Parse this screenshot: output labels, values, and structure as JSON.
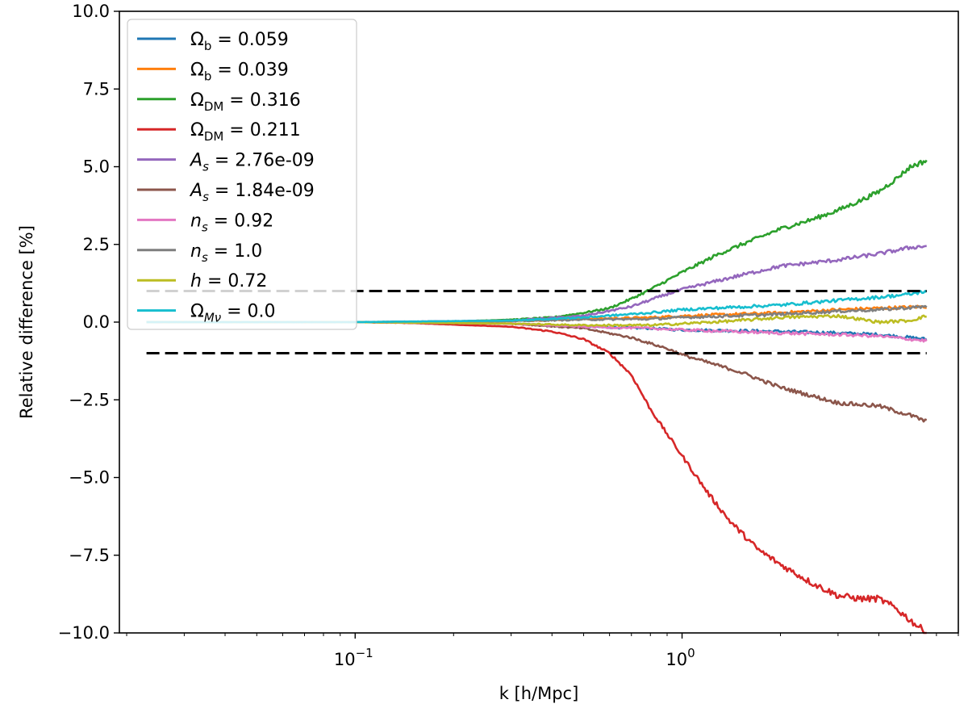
{
  "chart_data": {
    "type": "line",
    "title": "",
    "xlabel": "k [h/Mpc]",
    "ylabel": "Relative difference [%]",
    "xscale": "log",
    "xlim": [
      0.019,
      7.0
    ],
    "ylim": [
      -10.0,
      10.0
    ],
    "grid": false,
    "legend_position": "top-left",
    "y_ticks": [
      -10.0,
      -7.5,
      -5.0,
      -2.5,
      0.0,
      2.5,
      5.0,
      7.5,
      10.0
    ],
    "y_tick_labels": [
      "−10.0",
      "−7.5",
      "−5.0",
      "−2.5",
      "0.0",
      "2.5",
      "5.0",
      "7.5",
      "10.0"
    ],
    "x_major_ticks": [
      0.1,
      1.0
    ],
    "x_tick_labels": [
      {
        "base": "10",
        "exp": "−1"
      },
      {
        "base": "10",
        "exp": "0"
      }
    ],
    "reference_lines": [
      {
        "y": 1.0,
        "style": "dashed",
        "color": "#000000",
        "x_range": [
          0.023,
          5.6
        ]
      },
      {
        "y": -1.0,
        "style": "dashed",
        "color": "#000000",
        "x_range": [
          0.023,
          5.6
        ]
      }
    ],
    "series": [
      {
        "name": "Omega_b = 0.059",
        "legend": {
          "sym": "Ω",
          "sub": "b",
          "val": " = 0.059",
          "italic": false
        },
        "color": "#1f77b4",
        "points": [
          [
            0.023,
            0
          ],
          [
            0.1,
            0
          ],
          [
            0.3,
            -0.05
          ],
          [
            0.5,
            -0.15
          ],
          [
            0.8,
            -0.2
          ],
          [
            1.0,
            -0.25
          ],
          [
            2.0,
            -0.3
          ],
          [
            3.0,
            -0.35
          ],
          [
            4.0,
            -0.4
          ],
          [
            5.6,
            -0.55
          ]
        ]
      },
      {
        "name": "Omega_b = 0.039",
        "legend": {
          "sym": "Ω",
          "sub": "b",
          "val": " = 0.039",
          "italic": false
        },
        "color": "#ff7f0e",
        "points": [
          [
            0.023,
            0
          ],
          [
            0.1,
            0
          ],
          [
            0.3,
            0.03
          ],
          [
            0.5,
            0.1
          ],
          [
            0.8,
            0.15
          ],
          [
            1.0,
            0.2
          ],
          [
            2.0,
            0.3
          ],
          [
            3.0,
            0.4
          ],
          [
            4.0,
            0.45
          ],
          [
            5.6,
            0.5
          ]
        ]
      },
      {
        "name": "Omega_DM = 0.316",
        "legend": {
          "sym": "Ω",
          "sub": "DM",
          "val": " = 0.316",
          "italic": false
        },
        "color": "#2ca02c",
        "points": [
          [
            0.023,
            0
          ],
          [
            0.1,
            0
          ],
          [
            0.2,
            0.02
          ],
          [
            0.3,
            0.08
          ],
          [
            0.4,
            0.15
          ],
          [
            0.5,
            0.3
          ],
          [
            0.6,
            0.45
          ],
          [
            0.7,
            0.75
          ],
          [
            0.8,
            1.05
          ],
          [
            1.0,
            1.6
          ],
          [
            1.3,
            2.2
          ],
          [
            1.7,
            2.7
          ],
          [
            2.0,
            3.0
          ],
          [
            2.5,
            3.3
          ],
          [
            3.0,
            3.6
          ],
          [
            3.5,
            3.9
          ],
          [
            4.0,
            4.2
          ],
          [
            4.5,
            4.6
          ],
          [
            5.0,
            5.0
          ],
          [
            5.6,
            5.2
          ]
        ]
      },
      {
        "name": "Omega_DM = 0.211",
        "legend": {
          "sym": "Ω",
          "sub": "DM",
          "val": " = 0.211",
          "italic": false
        },
        "color": "#d62728",
        "points": [
          [
            0.023,
            0
          ],
          [
            0.1,
            0
          ],
          [
            0.15,
            -0.03
          ],
          [
            0.2,
            -0.08
          ],
          [
            0.3,
            -0.15
          ],
          [
            0.4,
            -0.3
          ],
          [
            0.5,
            -0.55
          ],
          [
            0.6,
            -1.0
          ],
          [
            0.7,
            -1.7
          ],
          [
            0.8,
            -2.8
          ],
          [
            0.9,
            -3.6
          ],
          [
            1.0,
            -4.3
          ],
          [
            1.2,
            -5.5
          ],
          [
            1.4,
            -6.4
          ],
          [
            1.7,
            -7.3
          ],
          [
            2.0,
            -7.8
          ],
          [
            2.5,
            -8.4
          ],
          [
            3.0,
            -8.8
          ],
          [
            3.5,
            -8.9
          ],
          [
            4.0,
            -8.9
          ],
          [
            4.5,
            -9.2
          ],
          [
            5.0,
            -9.6
          ],
          [
            5.6,
            -10.0
          ]
        ]
      },
      {
        "name": "A_s = 2.76e-09",
        "legend": {
          "sym": "A",
          "sub": "s",
          "val": " = 2.76e-09",
          "italic": true
        },
        "color": "#9467bd",
        "points": [
          [
            0.023,
            0
          ],
          [
            0.1,
            0
          ],
          [
            0.3,
            0.05
          ],
          [
            0.5,
            0.2
          ],
          [
            0.7,
            0.5
          ],
          [
            0.9,
            0.9
          ],
          [
            1.0,
            1.05
          ],
          [
            1.5,
            1.5
          ],
          [
            2.0,
            1.8
          ],
          [
            3.0,
            2.0
          ],
          [
            4.0,
            2.2
          ],
          [
            5.0,
            2.4
          ],
          [
            5.6,
            2.45
          ]
        ]
      },
      {
        "name": "A_s = 1.84e-09",
        "legend": {
          "sym": "A",
          "sub": "s",
          "val": " = 1.84e-09",
          "italic": true
        },
        "color": "#8c564b",
        "points": [
          [
            0.023,
            0
          ],
          [
            0.1,
            0
          ],
          [
            0.3,
            -0.05
          ],
          [
            0.5,
            -0.2
          ],
          [
            0.7,
            -0.5
          ],
          [
            0.9,
            -0.85
          ],
          [
            1.0,
            -1.05
          ],
          [
            1.5,
            -1.6
          ],
          [
            2.0,
            -2.1
          ],
          [
            3.0,
            -2.6
          ],
          [
            4.0,
            -2.7
          ],
          [
            5.0,
            -3.0
          ],
          [
            5.6,
            -3.2
          ]
        ]
      },
      {
        "name": "n_s = 0.92",
        "legend": {
          "sym": "n",
          "sub": "s",
          "val": " = 0.92",
          "italic": true
        },
        "color": "#e377c2",
        "points": [
          [
            0.023,
            0
          ],
          [
            0.1,
            0
          ],
          [
            0.3,
            -0.05
          ],
          [
            0.5,
            -0.15
          ],
          [
            0.8,
            -0.2
          ],
          [
            1.0,
            -0.25
          ],
          [
            2.0,
            -0.35
          ],
          [
            3.0,
            -0.4
          ],
          [
            4.0,
            -0.45
          ],
          [
            5.6,
            -0.6
          ]
        ]
      },
      {
        "name": "n_s = 1.0",
        "legend": {
          "sym": "n",
          "sub": "s",
          "val": " = 1.0",
          "italic": true
        },
        "color": "#7f7f7f",
        "points": [
          [
            0.023,
            0
          ],
          [
            0.1,
            0
          ],
          [
            0.3,
            0.03
          ],
          [
            0.5,
            0.08
          ],
          [
            0.8,
            0.1
          ],
          [
            1.0,
            0.15
          ],
          [
            2.0,
            0.25
          ],
          [
            3.0,
            0.35
          ],
          [
            4.0,
            0.4
          ],
          [
            5.6,
            0.5
          ]
        ]
      },
      {
        "name": "h = 0.72",
        "legend": {
          "sym": "h",
          "sub": "",
          "val": " = 0.72",
          "italic": true
        },
        "color": "#bcbd22",
        "points": [
          [
            0.023,
            0
          ],
          [
            0.1,
            0
          ],
          [
            0.3,
            -0.05
          ],
          [
            0.5,
            -0.1
          ],
          [
            0.8,
            -0.1
          ],
          [
            1.0,
            -0.05
          ],
          [
            1.5,
            0.05
          ],
          [
            2.0,
            0.15
          ],
          [
            3.0,
            0.2
          ],
          [
            4.0,
            0.0
          ],
          [
            5.0,
            0.05
          ],
          [
            5.6,
            0.2
          ]
        ]
      },
      {
        "name": "Omega_Mnu = 0.0",
        "legend": {
          "sym": "Ω",
          "sub": "Mν",
          "val": " = 0.0",
          "italic": false,
          "sub_italic": true
        },
        "color": "#17becf",
        "points": [
          [
            0.023,
            0
          ],
          [
            0.1,
            0
          ],
          [
            0.3,
            0.05
          ],
          [
            0.5,
            0.15
          ],
          [
            0.8,
            0.3
          ],
          [
            1.0,
            0.4
          ],
          [
            2.0,
            0.55
          ],
          [
            3.0,
            0.7
          ],
          [
            4.0,
            0.8
          ],
          [
            5.0,
            0.9
          ],
          [
            5.6,
            1.0
          ]
        ]
      }
    ]
  }
}
